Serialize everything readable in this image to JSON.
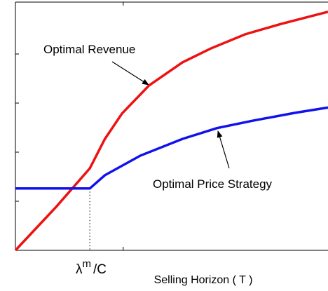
{
  "chart_data": {
    "type": "line",
    "xlabel": "Selling Horizon ( T )",
    "xlim": [
      0,
      2.9
    ],
    "ylim": [
      0,
      5
    ],
    "xticks": [
      1
    ],
    "yticks": [
      1,
      2,
      3,
      4
    ],
    "x_marker": {
      "base": "λ",
      "sup": "m",
      "rest": "/C",
      "x": 0.69
    },
    "series": [
      {
        "name": "Optimal Revenue",
        "color": "#ee1111",
        "x": [
          0,
          0.38,
          0.69,
          0.83,
          0.99,
          1.24,
          1.55,
          1.81,
          2.13,
          2.46,
          2.9
        ],
        "values": [
          0,
          0.89,
          1.67,
          2.27,
          2.79,
          3.36,
          3.83,
          4.11,
          4.4,
          4.61,
          4.86
        ]
      },
      {
        "name": "Optimal Price Strategy",
        "color": "#1111ee",
        "x": [
          0,
          0.69,
          0.83,
          1.16,
          1.55,
          1.87,
          2.2,
          2.59,
          2.9
        ],
        "values": [
          1.26,
          1.26,
          1.53,
          1.93,
          2.27,
          2.49,
          2.64,
          2.8,
          2.91
        ]
      }
    ]
  }
}
